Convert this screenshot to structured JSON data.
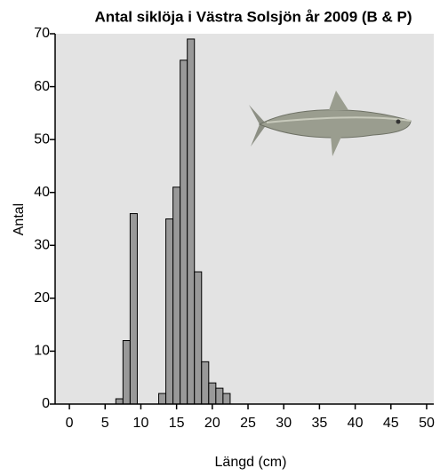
{
  "chart_data": {
    "type": "histogram",
    "title": "Antal siklöja i Västra Solsjön år 2009 (B & P)",
    "x_label": "Längd (cm)",
    "y_label": "Antal",
    "bins": [
      6.5,
      7.5,
      8.5,
      9.5,
      10.5,
      11.5,
      12.5,
      13.5,
      14.5,
      15.5,
      16.5,
      17.5,
      18.5,
      19.5,
      20.5,
      21.5,
      22.5
    ],
    "values": [
      1,
      12,
      36,
      0,
      0,
      0,
      2,
      35,
      41,
      65,
      69,
      25,
      8,
      4,
      3,
      2
    ],
    "color": "#999999",
    "xlim": [
      -2,
      51
    ],
    "xticks": [
      0,
      5,
      10,
      15,
      20,
      25,
      30,
      35,
      40,
      45,
      50
    ],
    "ylim": [
      0,
      70
    ],
    "yticks": [
      0,
      10,
      20,
      30,
      40,
      50,
      60,
      70
    ]
  }
}
